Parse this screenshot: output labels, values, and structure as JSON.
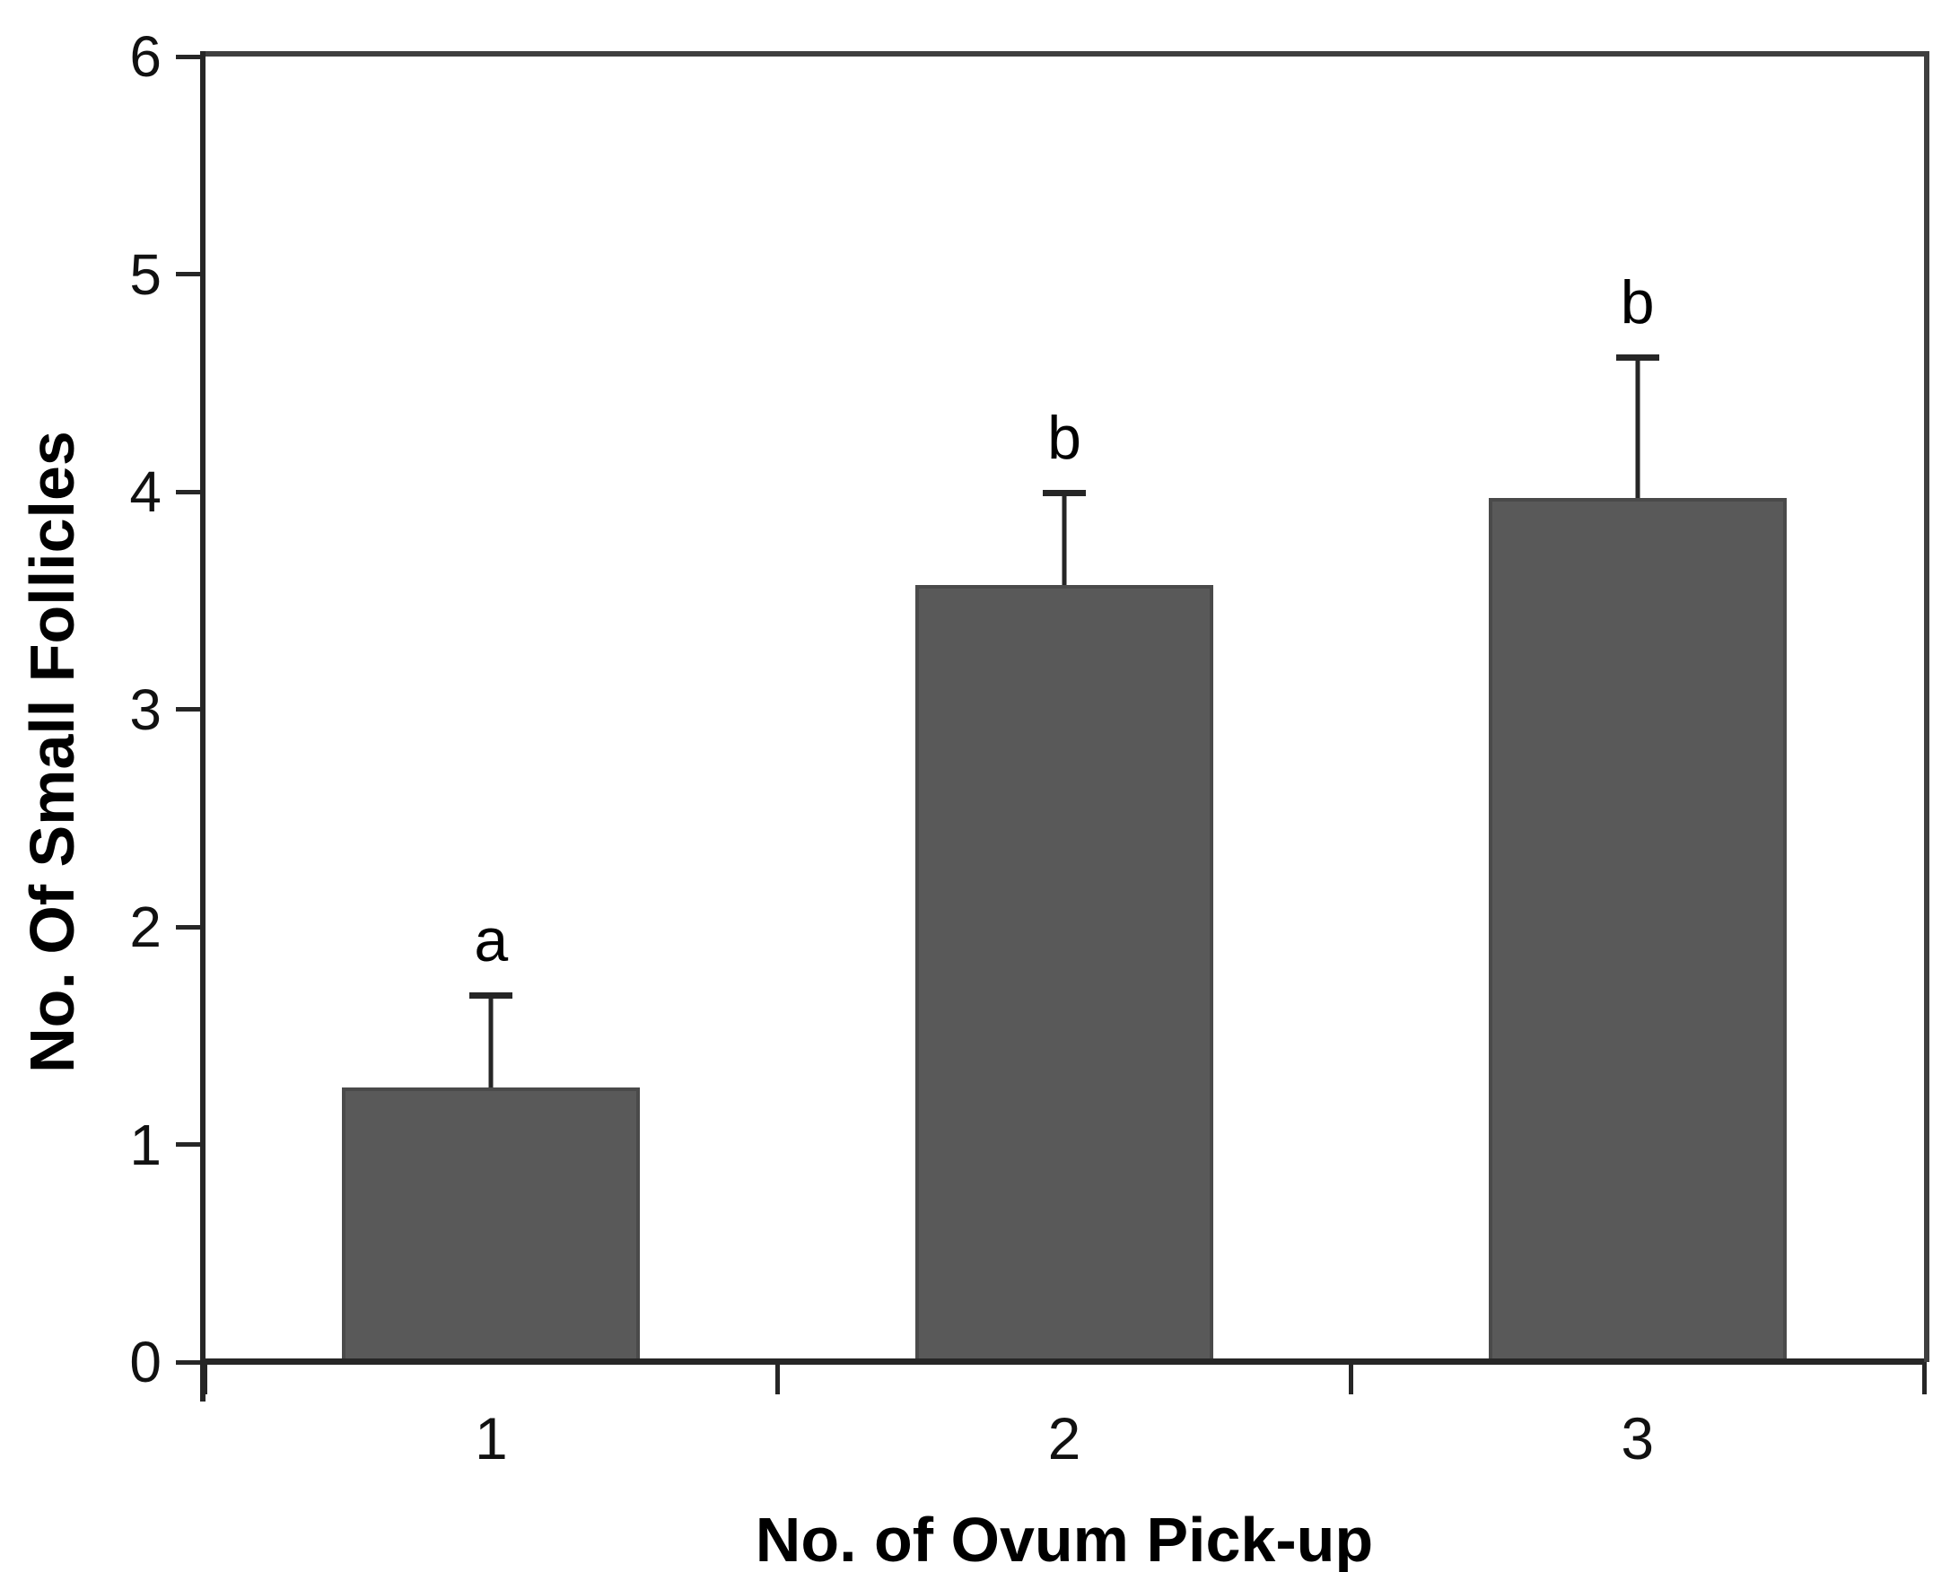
{
  "figure": {
    "background": "#ffffff"
  },
  "chart_data": {
    "type": "bar",
    "title": "",
    "categories": [
      "1",
      "2",
      "3"
    ],
    "values": [
      1.26,
      3.57,
      3.97
    ],
    "error_plus": [
      0.44,
      0.44,
      0.66
    ],
    "sig_letters": [
      "a",
      "b",
      "b"
    ],
    "xlabel": "No. of Ovum Pick-up",
    "ylabel": "No. Of Small Follicles",
    "ylim": [
      0,
      6
    ],
    "yticks": [
      0,
      1,
      2,
      3,
      4,
      5,
      6
    ],
    "grid": false,
    "legend": "none",
    "bar_color": "#595959",
    "bar_border_color": "#4a4a4a",
    "axis_color": "#262626",
    "frame_color": "#3f3f3f",
    "bar_width_fraction": 0.52
  }
}
